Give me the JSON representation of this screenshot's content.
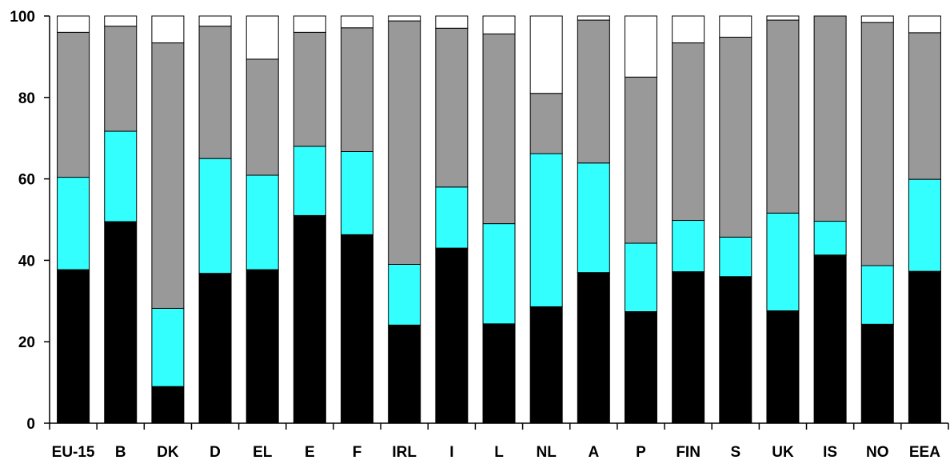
{
  "chart_data": {
    "type": "bar",
    "stacked": true,
    "title": "",
    "xlabel": "",
    "ylabel": "",
    "ylim": [
      0,
      100
    ],
    "yticks": [
      0,
      20,
      40,
      60,
      80,
      100
    ],
    "grid": false,
    "legend": "none",
    "categories": [
      "EU-15",
      "B",
      "DK",
      "D",
      "EL",
      "E",
      "F",
      "IRL",
      "I",
      "L",
      "NL",
      "A",
      "P",
      "FIN",
      "S",
      "UK",
      "IS",
      "NO",
      "EEA"
    ],
    "series": [
      {
        "color": "#000000",
        "values": [
          37.7,
          49.5,
          9.0,
          36.8,
          37.7,
          51.0,
          46.3,
          24.1,
          43.0,
          24.4,
          28.6,
          37.0,
          27.4,
          37.2,
          36.0,
          27.6,
          41.3,
          24.3,
          37.3
        ]
      },
      {
        "color": "#33ffff",
        "values": [
          22.7,
          22.2,
          19.2,
          28.2,
          23.2,
          17.0,
          20.4,
          14.9,
          15.0,
          24.6,
          37.6,
          26.9,
          16.8,
          12.6,
          9.7,
          24.0,
          8.3,
          14.4,
          22.6
        ]
      },
      {
        "color": "#999999",
        "values": [
          35.6,
          25.8,
          65.2,
          32.5,
          28.5,
          28.0,
          30.4,
          59.8,
          39.0,
          46.6,
          14.8,
          35.1,
          40.8,
          43.6,
          49.1,
          47.4,
          50.4,
          59.7,
          36.0
        ]
      }
    ]
  }
}
